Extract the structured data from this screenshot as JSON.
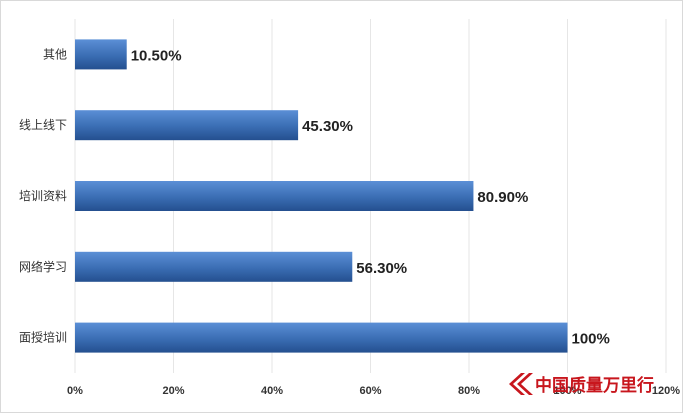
{
  "chart_data": {
    "type": "bar",
    "orientation": "horizontal",
    "categories": [
      "其他",
      "线上线下",
      "培训资料",
      "网络学习",
      "面授培训"
    ],
    "values": [
      10.5,
      45.3,
      80.9,
      56.3,
      100
    ],
    "value_labels": [
      "10.50%",
      "45.30%",
      "80.90%",
      "56.30%",
      "100%"
    ],
    "x_ticks": [
      "0%",
      "20%",
      "40%",
      "60%",
      "80%",
      "100%",
      "120%"
    ],
    "xlim": [
      0,
      120
    ],
    "grid": true,
    "bar_color": "#3a6db3"
  },
  "watermark": {
    "text": "中国质量万里行"
  }
}
